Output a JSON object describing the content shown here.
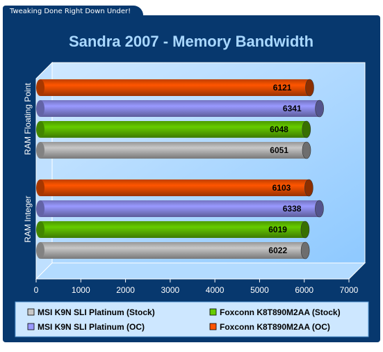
{
  "header": {
    "tagline": "Tweaking Done Right Down Under!"
  },
  "chart_data": {
    "type": "bar",
    "orientation": "horizontal",
    "title": "Sandra 2007 - Memory Bandwidth",
    "categories": [
      "RAM Floating Point",
      "RAM Integer"
    ],
    "xlim": [
      0,
      7000
    ],
    "xticks": [
      0,
      1000,
      2000,
      3000,
      4000,
      5000,
      6000,
      7000
    ],
    "grid": false,
    "legend_position": "bottom",
    "series": [
      {
        "name": "MSI K9N SLI Platinum (Stock)",
        "color": "#c8c8c8",
        "values": [
          6051,
          6022
        ]
      },
      {
        "name": "Foxconn K8T890M2AA (Stock)",
        "color": "#66cc00",
        "values": [
          6048,
          6019
        ]
      },
      {
        "name": "MSI K9N SLI Platinum (OC)",
        "color": "#9999ff",
        "values": [
          6341,
          6338
        ]
      },
      {
        "name": "Foxconn K8T890M2AA (OC)",
        "color": "#ff5500",
        "values": [
          6121,
          6103
        ]
      }
    ]
  }
}
